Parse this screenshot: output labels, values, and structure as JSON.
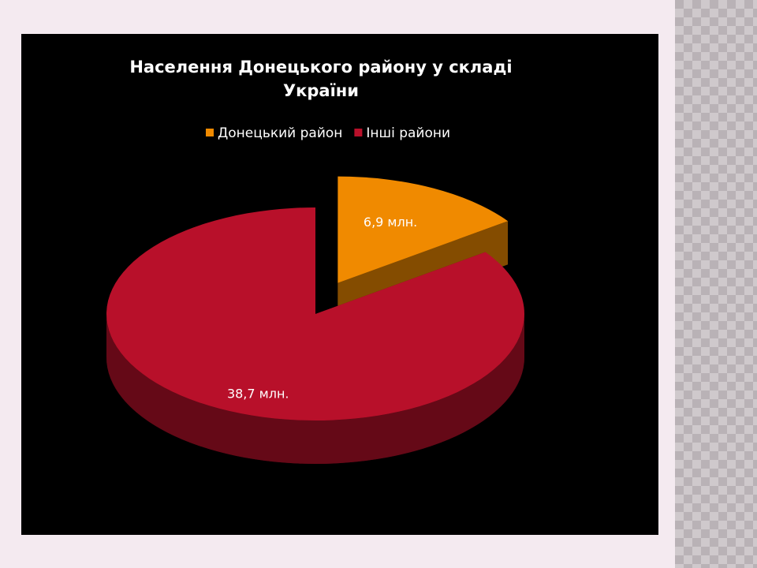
{
  "chart_data": {
    "type": "pie",
    "title": "Населення Донецького району у складі України",
    "categories": [
      "Донецький район",
      "Інші райони"
    ],
    "values": [
      6.9,
      38.7
    ],
    "value_labels": [
      "6,9 млн.",
      "38,7 млн."
    ],
    "colors": [
      "#f08a00",
      "#b8102a"
    ],
    "legend": "top"
  }
}
